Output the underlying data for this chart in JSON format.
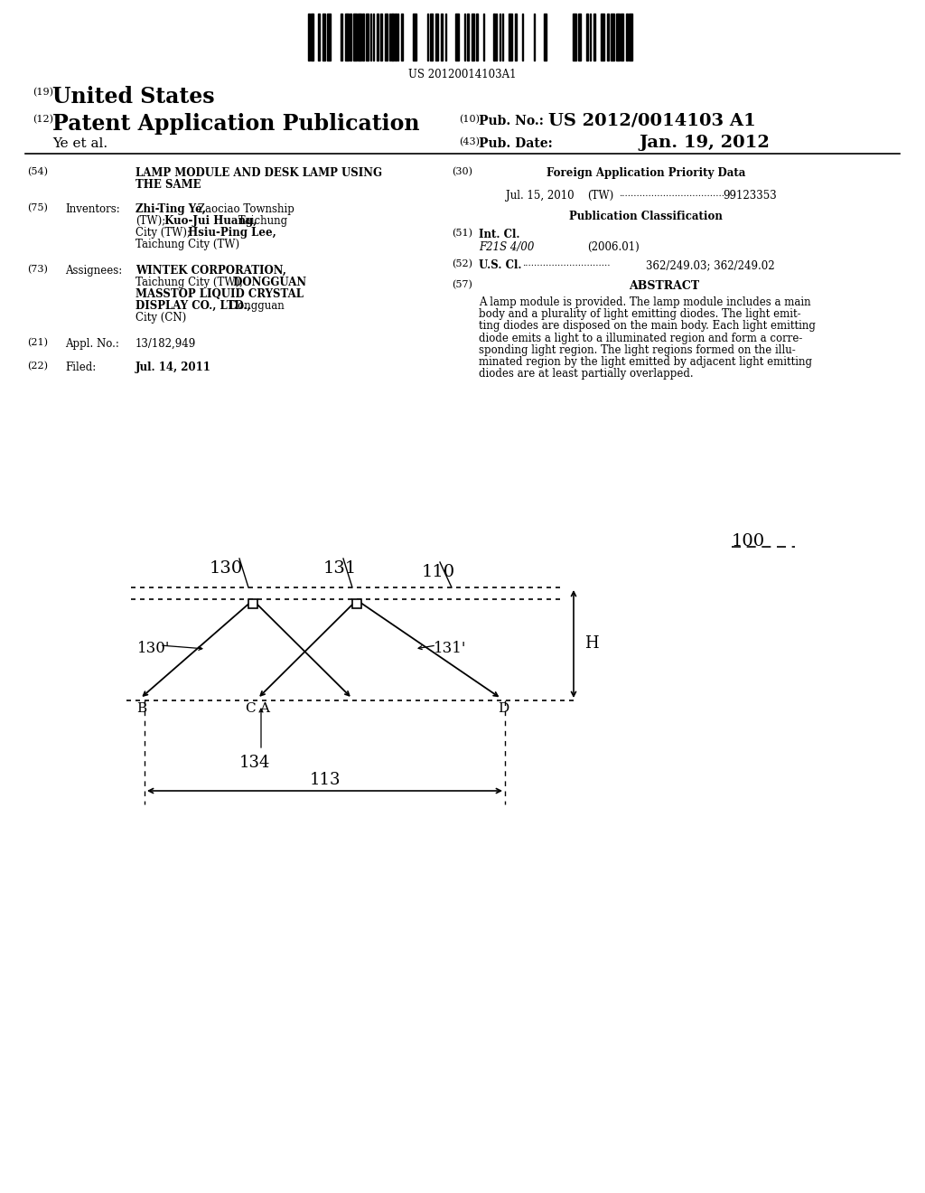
{
  "barcode_text": "US 20120014103A1",
  "header": {
    "label19": "(19)",
    "country": "United States",
    "label12": "(12)",
    "pub_type": "Patent Application Publication",
    "label10": "(10)",
    "pub_no_label": "Pub. No.:",
    "pub_no": "US 2012/0014103 A1",
    "author": "Ye et al.",
    "label43": "(43)",
    "pub_date_label": "Pub. Date:",
    "pub_date": "Jan. 19, 2012"
  },
  "bg_color": "#ffffff"
}
